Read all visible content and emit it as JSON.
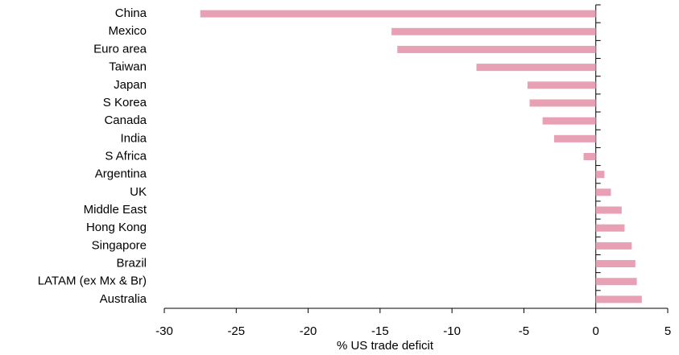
{
  "chart_data": {
    "type": "bar",
    "orientation": "horizontal",
    "x_label": "% US trade deficit",
    "categories": [
      "China",
      "Mexico",
      "Euro area",
      "Taiwan",
      "Japan",
      "S Korea",
      "Canada",
      "India",
      "S Africa",
      "Argentina",
      "UK",
      "Middle East",
      "Hong Kong",
      "Singapore",
      "Brazil",
      "LATAM (ex Mx & Br)",
      "Australia"
    ],
    "values": [
      -27.5,
      -14.2,
      -13.8,
      -8.3,
      -4.75,
      -4.6,
      -3.7,
      -2.9,
      -0.85,
      0.6,
      1.05,
      1.8,
      2.0,
      2.5,
      2.75,
      2.85,
      3.2
    ],
    "color": "#e8a0b4",
    "xlim": [
      -30,
      5
    ],
    "xticks": [
      -30,
      -25,
      -20,
      -15,
      -10,
      -5,
      0,
      5
    ],
    "grid": false
  }
}
